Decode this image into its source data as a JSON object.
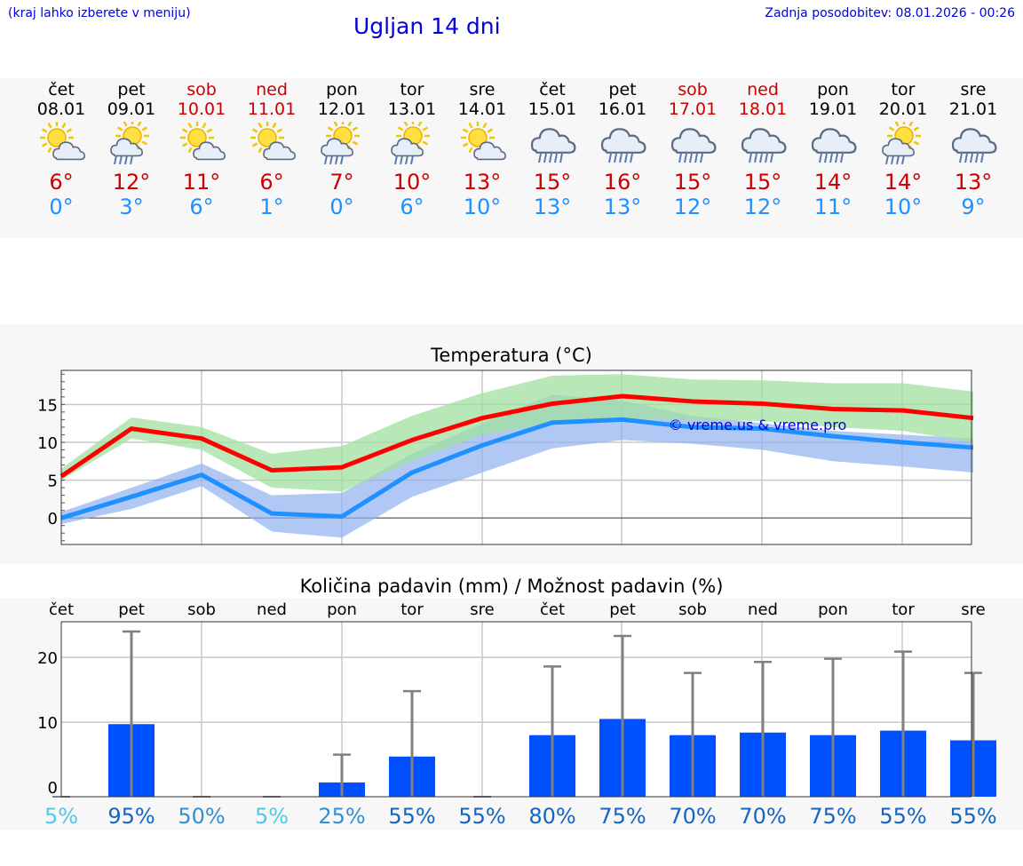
{
  "header": {
    "note": "(kraj lahko izberete v meniju)",
    "title": "Ugljan 14 dni",
    "updated": "Zadnja posodobitev: 08.01.2026 - 00:26"
  },
  "colors": {
    "weekday": "#000000",
    "weekend": "#cc0000",
    "tmax": "#cc0000",
    "tmin": "#1e90ff",
    "bar": "#0050ff"
  },
  "days": [
    {
      "name": "čet",
      "date": "08.01",
      "weekend": false,
      "icon": "sun-cloud-icon",
      "tmax": "6°",
      "tmin": "0°"
    },
    {
      "name": "pet",
      "date": "09.01",
      "weekend": false,
      "icon": "sun-rain-icon",
      "tmax": "12°",
      "tmin": "3°"
    },
    {
      "name": "sob",
      "date": "10.01",
      "weekend": true,
      "icon": "sun-cloud-icon",
      "tmax": "11°",
      "tmin": "6°"
    },
    {
      "name": "ned",
      "date": "11.01",
      "weekend": true,
      "icon": "sun-cloud-icon",
      "tmax": "6°",
      "tmin": "1°"
    },
    {
      "name": "pon",
      "date": "12.01",
      "weekend": false,
      "icon": "sun-rain-icon",
      "tmax": "7°",
      "tmin": "0°"
    },
    {
      "name": "tor",
      "date": "13.01",
      "weekend": false,
      "icon": "sun-rain-icon",
      "tmax": "10°",
      "tmin": "6°"
    },
    {
      "name": "sre",
      "date": "14.01",
      "weekend": false,
      "icon": "sun-cloud-icon",
      "tmax": "13°",
      "tmin": "10°"
    },
    {
      "name": "čet",
      "date": "15.01",
      "weekend": false,
      "icon": "rain-cloud-icon",
      "tmax": "15°",
      "tmin": "13°"
    },
    {
      "name": "pet",
      "date": "16.01",
      "weekend": false,
      "icon": "rain-cloud-icon",
      "tmax": "16°",
      "tmin": "13°"
    },
    {
      "name": "sob",
      "date": "17.01",
      "weekend": true,
      "icon": "rain-cloud-icon",
      "tmax": "15°",
      "tmin": "12°"
    },
    {
      "name": "ned",
      "date": "18.01",
      "weekend": true,
      "icon": "rain-cloud-icon",
      "tmax": "15°",
      "tmin": "12°"
    },
    {
      "name": "pon",
      "date": "19.01",
      "weekend": false,
      "icon": "rain-cloud-icon",
      "tmax": "14°",
      "tmin": "11°"
    },
    {
      "name": "tor",
      "date": "20.01",
      "weekend": false,
      "icon": "sun-rain-icon",
      "tmax": "14°",
      "tmin": "10°"
    },
    {
      "name": "sre",
      "date": "21.01",
      "weekend": false,
      "icon": "rain-cloud-icon",
      "tmax": "13°",
      "tmin": "9°"
    }
  ],
  "chart_data": [
    {
      "type": "line",
      "title": "Temperatura (°C)",
      "watermark": "© vreme.us & vreme.pro",
      "ylim": [
        -3.5,
        19.5
      ],
      "yticks": [
        0,
        5,
        10,
        15
      ],
      "x": [
        0,
        1,
        2,
        3,
        4,
        5,
        6,
        7,
        8,
        9,
        10,
        11,
        12,
        13
      ],
      "series": [
        {
          "name": "max",
          "color": "#ff0000",
          "values": [
            5.5,
            11.8,
            10.5,
            6.3,
            6.7,
            10.3,
            13.2,
            15.1,
            16.1,
            15.4,
            15.1,
            14.4,
            14.2,
            13.2
          ]
        },
        {
          "name": "min",
          "color": "#1e90ff",
          "values": [
            0.0,
            2.8,
            5.7,
            0.6,
            0.2,
            6.0,
            9.6,
            12.6,
            13.0,
            12.0,
            11.8,
            10.8,
            10.0,
            9.3
          ]
        },
        {
          "name": "max-range",
          "color": "#a0e0a0",
          "low": [
            5.0,
            10.5,
            9.0,
            4.0,
            3.5,
            7.5,
            11.0,
            12.5,
            13.0,
            13.0,
            12.8,
            12.0,
            11.5,
            10.0
          ],
          "high": [
            6.5,
            13.3,
            12.0,
            8.5,
            9.5,
            13.5,
            16.5,
            18.8,
            19.0,
            18.3,
            18.2,
            17.8,
            17.8,
            16.7
          ]
        },
        {
          "name": "min-range",
          "color": "#90b0f0",
          "low": [
            -0.8,
            1.2,
            4.2,
            -1.8,
            -2.6,
            2.8,
            6.0,
            9.2,
            10.3,
            9.8,
            9.0,
            7.5,
            6.8,
            6.0
          ],
          "high": [
            0.8,
            4.0,
            7.2,
            3.0,
            3.3,
            8.5,
            12.5,
            16.3,
            15.5,
            13.5,
            12.5,
            11.5,
            11.0,
            10.5
          ]
        }
      ]
    },
    {
      "type": "bar",
      "title": "Količina padavin (mm) / Možnost padavin (%)",
      "categories": [
        "čet",
        "pet",
        "sob",
        "ned",
        "pon",
        "tor",
        "sre",
        "čet",
        "pet",
        "sob",
        "ned",
        "pon",
        "tor",
        "sre"
      ],
      "ylim": [
        -1.5,
        25.5
      ],
      "yticks": [
        0,
        10,
        20
      ],
      "values": [
        0,
        9.7,
        0,
        0,
        0.7,
        4.7,
        0,
        8.0,
        10.5,
        8.0,
        8.4,
        8.0,
        8.7,
        7.2
      ],
      "max_values": [
        0,
        24.0,
        0,
        0,
        5.0,
        14.8,
        0,
        18.6,
        23.3,
        17.6,
        19.3,
        19.8,
        20.9,
        17.6
      ],
      "probability": [
        "5%",
        "95%",
        "50%",
        "5%",
        "25%",
        "55%",
        "55%",
        "80%",
        "75%",
        "70%",
        "70%",
        "75%",
        "55%",
        "55%"
      ],
      "probability_colors": [
        "#50c8e8",
        "#1565c0",
        "#3090d0",
        "#50c8e8",
        "#3090d0",
        "#1565c0",
        "#1565c0",
        "#1565c0",
        "#1565c0",
        "#1565c0",
        "#1565c0",
        "#1565c0",
        "#1565c0",
        "#1565c0"
      ]
    }
  ]
}
